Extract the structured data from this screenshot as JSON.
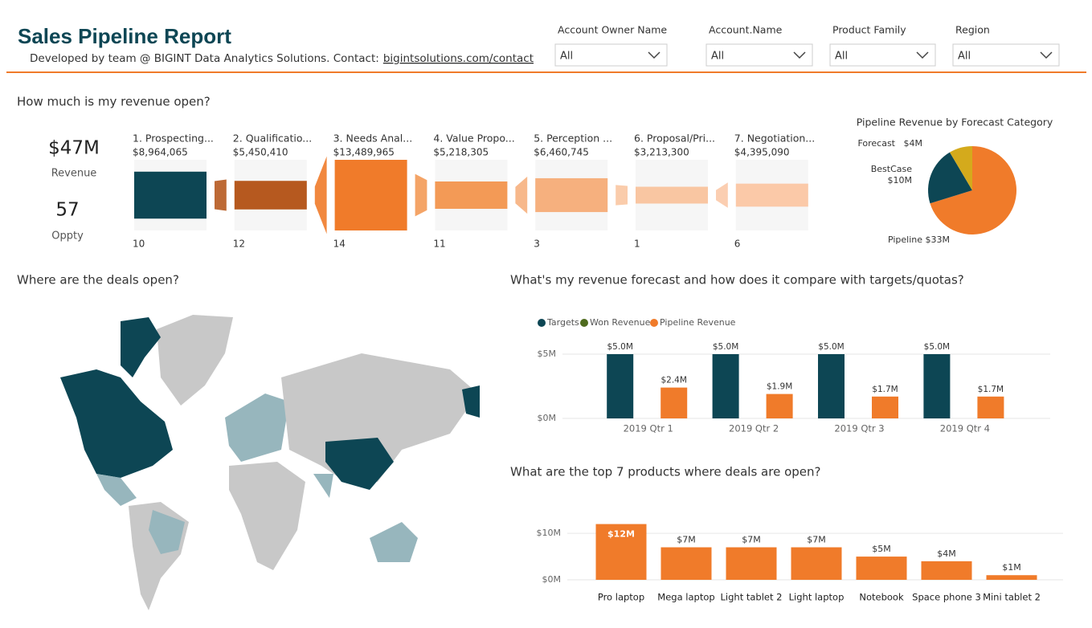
{
  "header": {
    "title": "Sales Pipeline Report",
    "subtitle": "Developed by team @ BIGINT Data Analytics Solutions. Contact:",
    "link": "bigintsolutions.com/contact"
  },
  "filters": [
    {
      "label": "Account Owner Name",
      "value": "All"
    },
    {
      "label": "Account.Name",
      "value": "All"
    },
    {
      "label": "Product Family",
      "value": "All"
    },
    {
      "label": "Region",
      "value": "All"
    }
  ],
  "sections": {
    "revenue": "How much is my revenue open?",
    "map": "Where are the deals open?",
    "forecast": "What's my revenue forecast and how does it compare with targets/quotas?",
    "products": "What are the top 7 products where deals are open?"
  },
  "kpis": [
    {
      "value": "$47M",
      "label": "Revenue"
    },
    {
      "value": "57",
      "label": "Oppty"
    }
  ],
  "funnel": {
    "stages": [
      "1. Prospecting...",
      "2. Qualificatio...",
      "3. Needs Anal...",
      "4. Value Propo...",
      "5. Perception ...",
      "6. Proposal/Pri...",
      "7. Negotiation..."
    ],
    "values": [
      8964065,
      5450410,
      13489965,
      5218305,
      6460745,
      3213300,
      4395090
    ],
    "value_labels": [
      "$8,964,065",
      "$5,450,410",
      "$13,489,965",
      "$5,218,305",
      "$6,460,745",
      "$3,213,300",
      "$4,395,090"
    ],
    "counts": [
      10,
      12,
      14,
      11,
      3,
      1,
      6
    ],
    "colors": [
      "#0d4654",
      "#b6591f",
      "#f07b2a",
      "#f39a56",
      "#f6b07e",
      "#f9c6a2",
      "#fbc9a8"
    ]
  },
  "chart_data": [
    {
      "type": "pie",
      "title": "Pipeline Revenue by Forecast Category",
      "categories": [
        "Pipeline",
        "BestCase",
        "Forecast"
      ],
      "values": [
        33,
        10,
        4
      ],
      "value_labels": [
        "$33M",
        "$10M",
        "$4M"
      ],
      "colors": [
        "#f07b2a",
        "#0d4654",
        "#d4aa1c"
      ]
    },
    {
      "type": "grouped_bar",
      "categories": [
        "2019 Qtr 1",
        "2019 Qtr 2",
        "2019 Qtr 3",
        "2019 Qtr 4"
      ],
      "series": [
        {
          "name": "Targets",
          "color": "#0d4654",
          "values": [
            5,
            5,
            5,
            5
          ],
          "value_labels": [
            "$5.0M",
            "$5.0M",
            "$5.0M",
            "$5.0M"
          ]
        },
        {
          "name": "Won Revenue",
          "color": "#4f6b1e",
          "values": [
            null,
            null,
            null,
            null
          ]
        },
        {
          "name": "Pipeline Revenue",
          "color": "#f07b2a",
          "values": [
            2.4,
            1.9,
            1.7,
            1.7
          ],
          "value_labels": [
            "$2.4M",
            "$1.9M",
            "$1.7M",
            "$1.7M"
          ]
        }
      ],
      "ylim": [
        0,
        6
      ],
      "yticks": [
        {
          "value": 0,
          "label": "$0M"
        },
        {
          "value": 5,
          "label": "$5M"
        }
      ],
      "grid": true,
      "legend": "top-left"
    },
    {
      "type": "bar",
      "categories": [
        "Pro laptop",
        "Mega laptop",
        "Light tablet 2",
        "Light laptop",
        "Notebook",
        "Space phone 3",
        "Mini tablet 2"
      ],
      "values": [
        12,
        7,
        7,
        7,
        5,
        4,
        1
      ],
      "value_labels": [
        "$12M",
        "$7M",
        "$7M",
        "$7M",
        "$5M",
        "$4M",
        "$1M"
      ],
      "color": "#f07b2a",
      "ylim": [
        0,
        14
      ],
      "yticks": [
        {
          "value": 0,
          "label": "$0M"
        },
        {
          "value": 10,
          "label": "$10M"
        }
      ],
      "grid": true
    }
  ]
}
